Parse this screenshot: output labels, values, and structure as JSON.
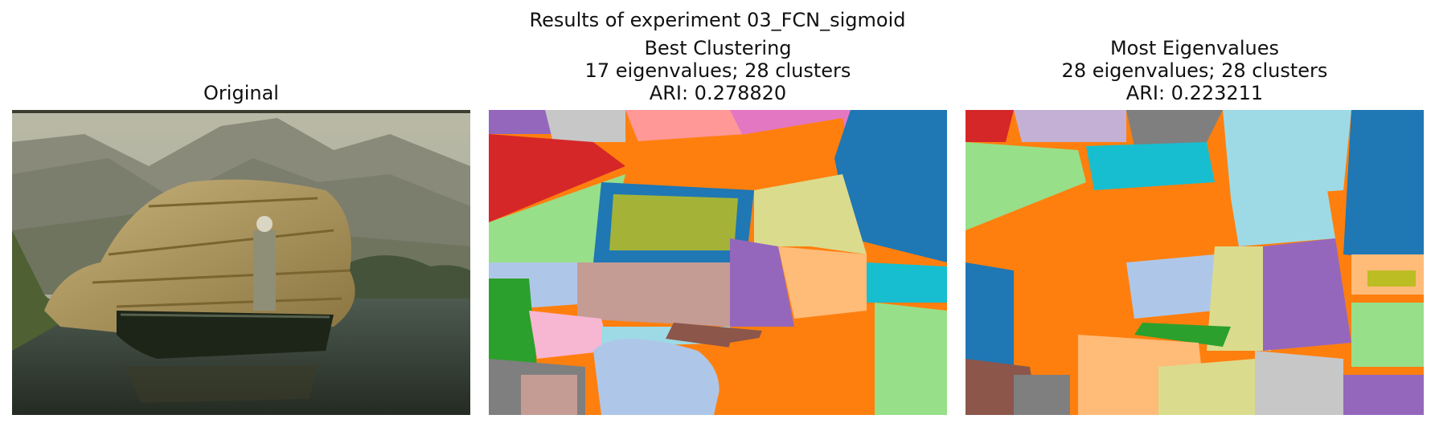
{
  "figure": {
    "title": "Results of experiment 03_FCN_sigmoid"
  },
  "panels": [
    {
      "id": "original",
      "title_lines": [
        "Original"
      ],
      "image": "photo of a boat loaded with reed bundles and a standing man on a lake, mountains behind"
    },
    {
      "id": "best",
      "title_lines": [
        "Best Clustering",
        "17 eigenvalues; 28 clusters",
        "ARI: 0.278820"
      ],
      "image": "segmentation map with colored clusters"
    },
    {
      "id": "most",
      "title_lines": [
        "Most Eigenvalues",
        "28 eigenvalues; 28 clusters",
        "ARI: 0.223211"
      ],
      "image": "segmentation map with colored clusters"
    }
  ],
  "colors": {
    "blue": "#1f77b4",
    "orange": "#ff7f0e",
    "green": "#2ca02c",
    "red": "#d62728",
    "purple": "#9467bd",
    "brown": "#8c564b",
    "pink": "#e377c2",
    "gray": "#7f7f7f",
    "olive": "#bcbd22",
    "cyan": "#17becf",
    "lightblue": "#aec7e8",
    "peach": "#ffbb78",
    "lightgreen": "#98df8a",
    "salmon": "#ff9896",
    "lavender": "#c5b0d5",
    "tan": "#c49c94",
    "lightpink": "#f7b6d2",
    "lightgray": "#c7c7c7",
    "khaki": "#dbdb8d",
    "skyblue": "#9edae5"
  }
}
